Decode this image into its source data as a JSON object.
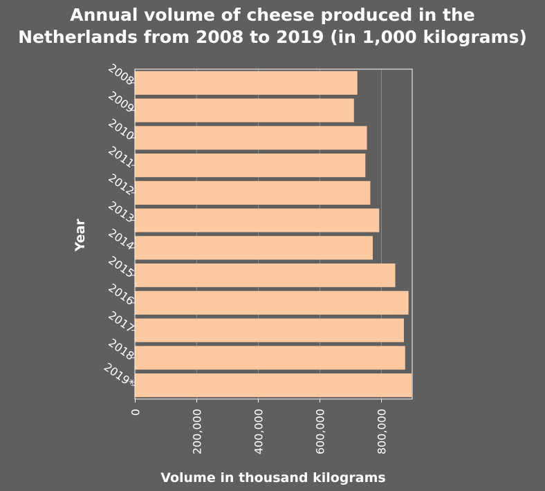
{
  "chart_data": {
    "type": "bar",
    "orientation": "horizontal",
    "title_line1": "Annual volume of cheese produced in the",
    "title_line2": "Netherlands from 2008 to 2019 (in 1,000 kilograms)",
    "xlabel": "Volume in thousand kilograms",
    "ylabel": "Year",
    "categories": [
      "2008",
      "2009",
      "2010",
      "2011",
      "2012",
      "2013",
      "2014",
      "2015",
      "2016",
      "2017",
      "2018",
      "2019*"
    ],
    "values": [
      722000,
      711000,
      753000,
      748000,
      764000,
      793000,
      772000,
      845000,
      888000,
      873000,
      877000,
      898000
    ],
    "xlim": [
      0,
      900000
    ],
    "xticks": [
      0,
      200000,
      400000,
      600000,
      800000
    ],
    "xtick_labels": [
      "0",
      "200,000",
      "400,000",
      "600,000",
      "800,000"
    ],
    "grid": "vertical",
    "bar_color": "#fdc9a0",
    "background_color": "#5f5f5f"
  }
}
